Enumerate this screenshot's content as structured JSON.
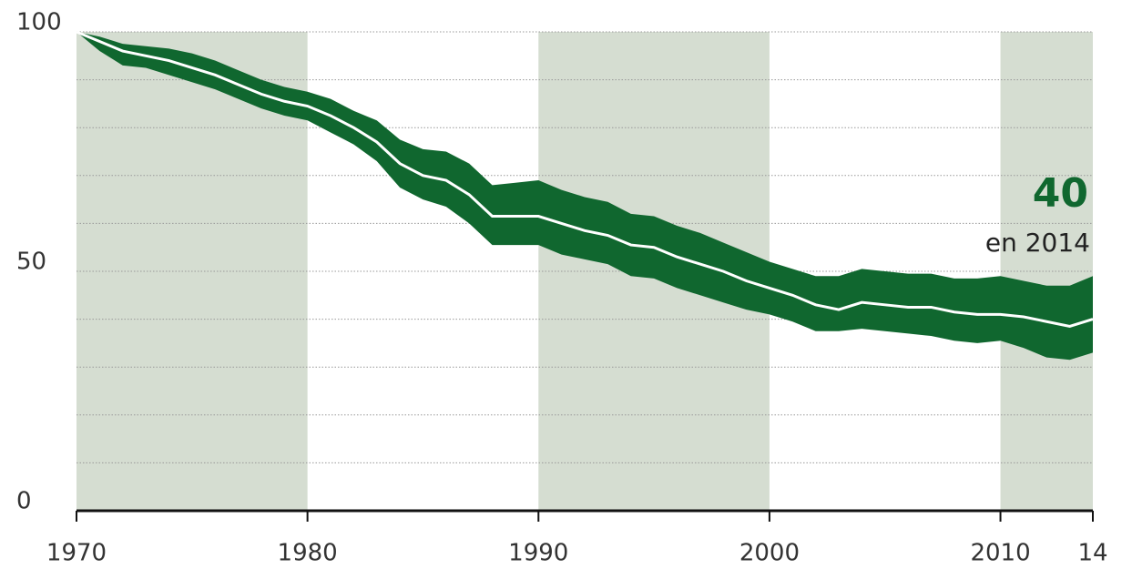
{
  "chart_data": {
    "type": "line",
    "x": [
      1970,
      1971,
      1972,
      1973,
      1974,
      1975,
      1976,
      1977,
      1978,
      1979,
      1980,
      1981,
      1982,
      1983,
      1984,
      1985,
      1986,
      1987,
      1988,
      1989,
      1990,
      1991,
      1992,
      1993,
      1994,
      1995,
      1996,
      1997,
      1998,
      1999,
      2000,
      2001,
      2002,
      2003,
      2004,
      2005,
      2006,
      2007,
      2008,
      2009,
      2010,
      2011,
      2012,
      2013,
      2014
    ],
    "series": [
      {
        "color": "#ffffff",
        "values": [
          100,
          98,
          96,
          95,
          94,
          92.5,
          91,
          89,
          87,
          85.5,
          84.5,
          82.5,
          80,
          77,
          72.5,
          70,
          69,
          66,
          61.5,
          61.5,
          61.5,
          60,
          58.5,
          57.5,
          55.5,
          55,
          53,
          51.5,
          50,
          48,
          46.5,
          45,
          43,
          42,
          43.5,
          43,
          42.5,
          42.5,
          41.5,
          41,
          41,
          40.5,
          39.5,
          38.5,
          40
        ]
      }
    ],
    "band": {
      "color": "#10672f",
      "upper": [
        100,
        99,
        97.5,
        97,
        96.5,
        95.5,
        94,
        92,
        90,
        88.5,
        87.5,
        86,
        83.5,
        81.5,
        77.5,
        75.5,
        75,
        72.5,
        68,
        68.5,
        69,
        67,
        65.5,
        64.5,
        62,
        61.5,
        59.5,
        58,
        56,
        54,
        52,
        50.5,
        49,
        49,
        50.5,
        50,
        49.5,
        49.5,
        48.5,
        48.5,
        49,
        48,
        47,
        47,
        49
      ],
      "lower": [
        100,
        96,
        93,
        92.5,
        91,
        89.5,
        88,
        86,
        84,
        82.5,
        81.5,
        79,
        76.5,
        73,
        67.5,
        65,
        63.5,
        60,
        55.5,
        55.5,
        55.5,
        53.5,
        52.5,
        51.5,
        49,
        48.5,
        46.5,
        45,
        43.5,
        42,
        41,
        39.5,
        37.5,
        37.5,
        38,
        37.5,
        37,
        36.5,
        35.5,
        35,
        35.5,
        34,
        32,
        31.5,
        33
      ]
    },
    "xlim": [
      1970,
      2014
    ],
    "xticks": [
      1970,
      1980,
      1990,
      2000,
      2010,
      {
        "value": 2014,
        "label": "14"
      }
    ],
    "ylim": [
      0,
      100
    ],
    "yticks": [
      0,
      50,
      100
    ],
    "minor_yticks": [
      10,
      20,
      30,
      40,
      60,
      70,
      80,
      90
    ],
    "shaded_spans": [
      [
        1970,
        1980
      ],
      [
        1990,
        2000
      ],
      [
        2010,
        2014
      ]
    ],
    "shade_color": "#d5ddd1",
    "grid": true,
    "annotation": {
      "label": "40",
      "text": "en 2014",
      "color": "#10672f"
    }
  }
}
